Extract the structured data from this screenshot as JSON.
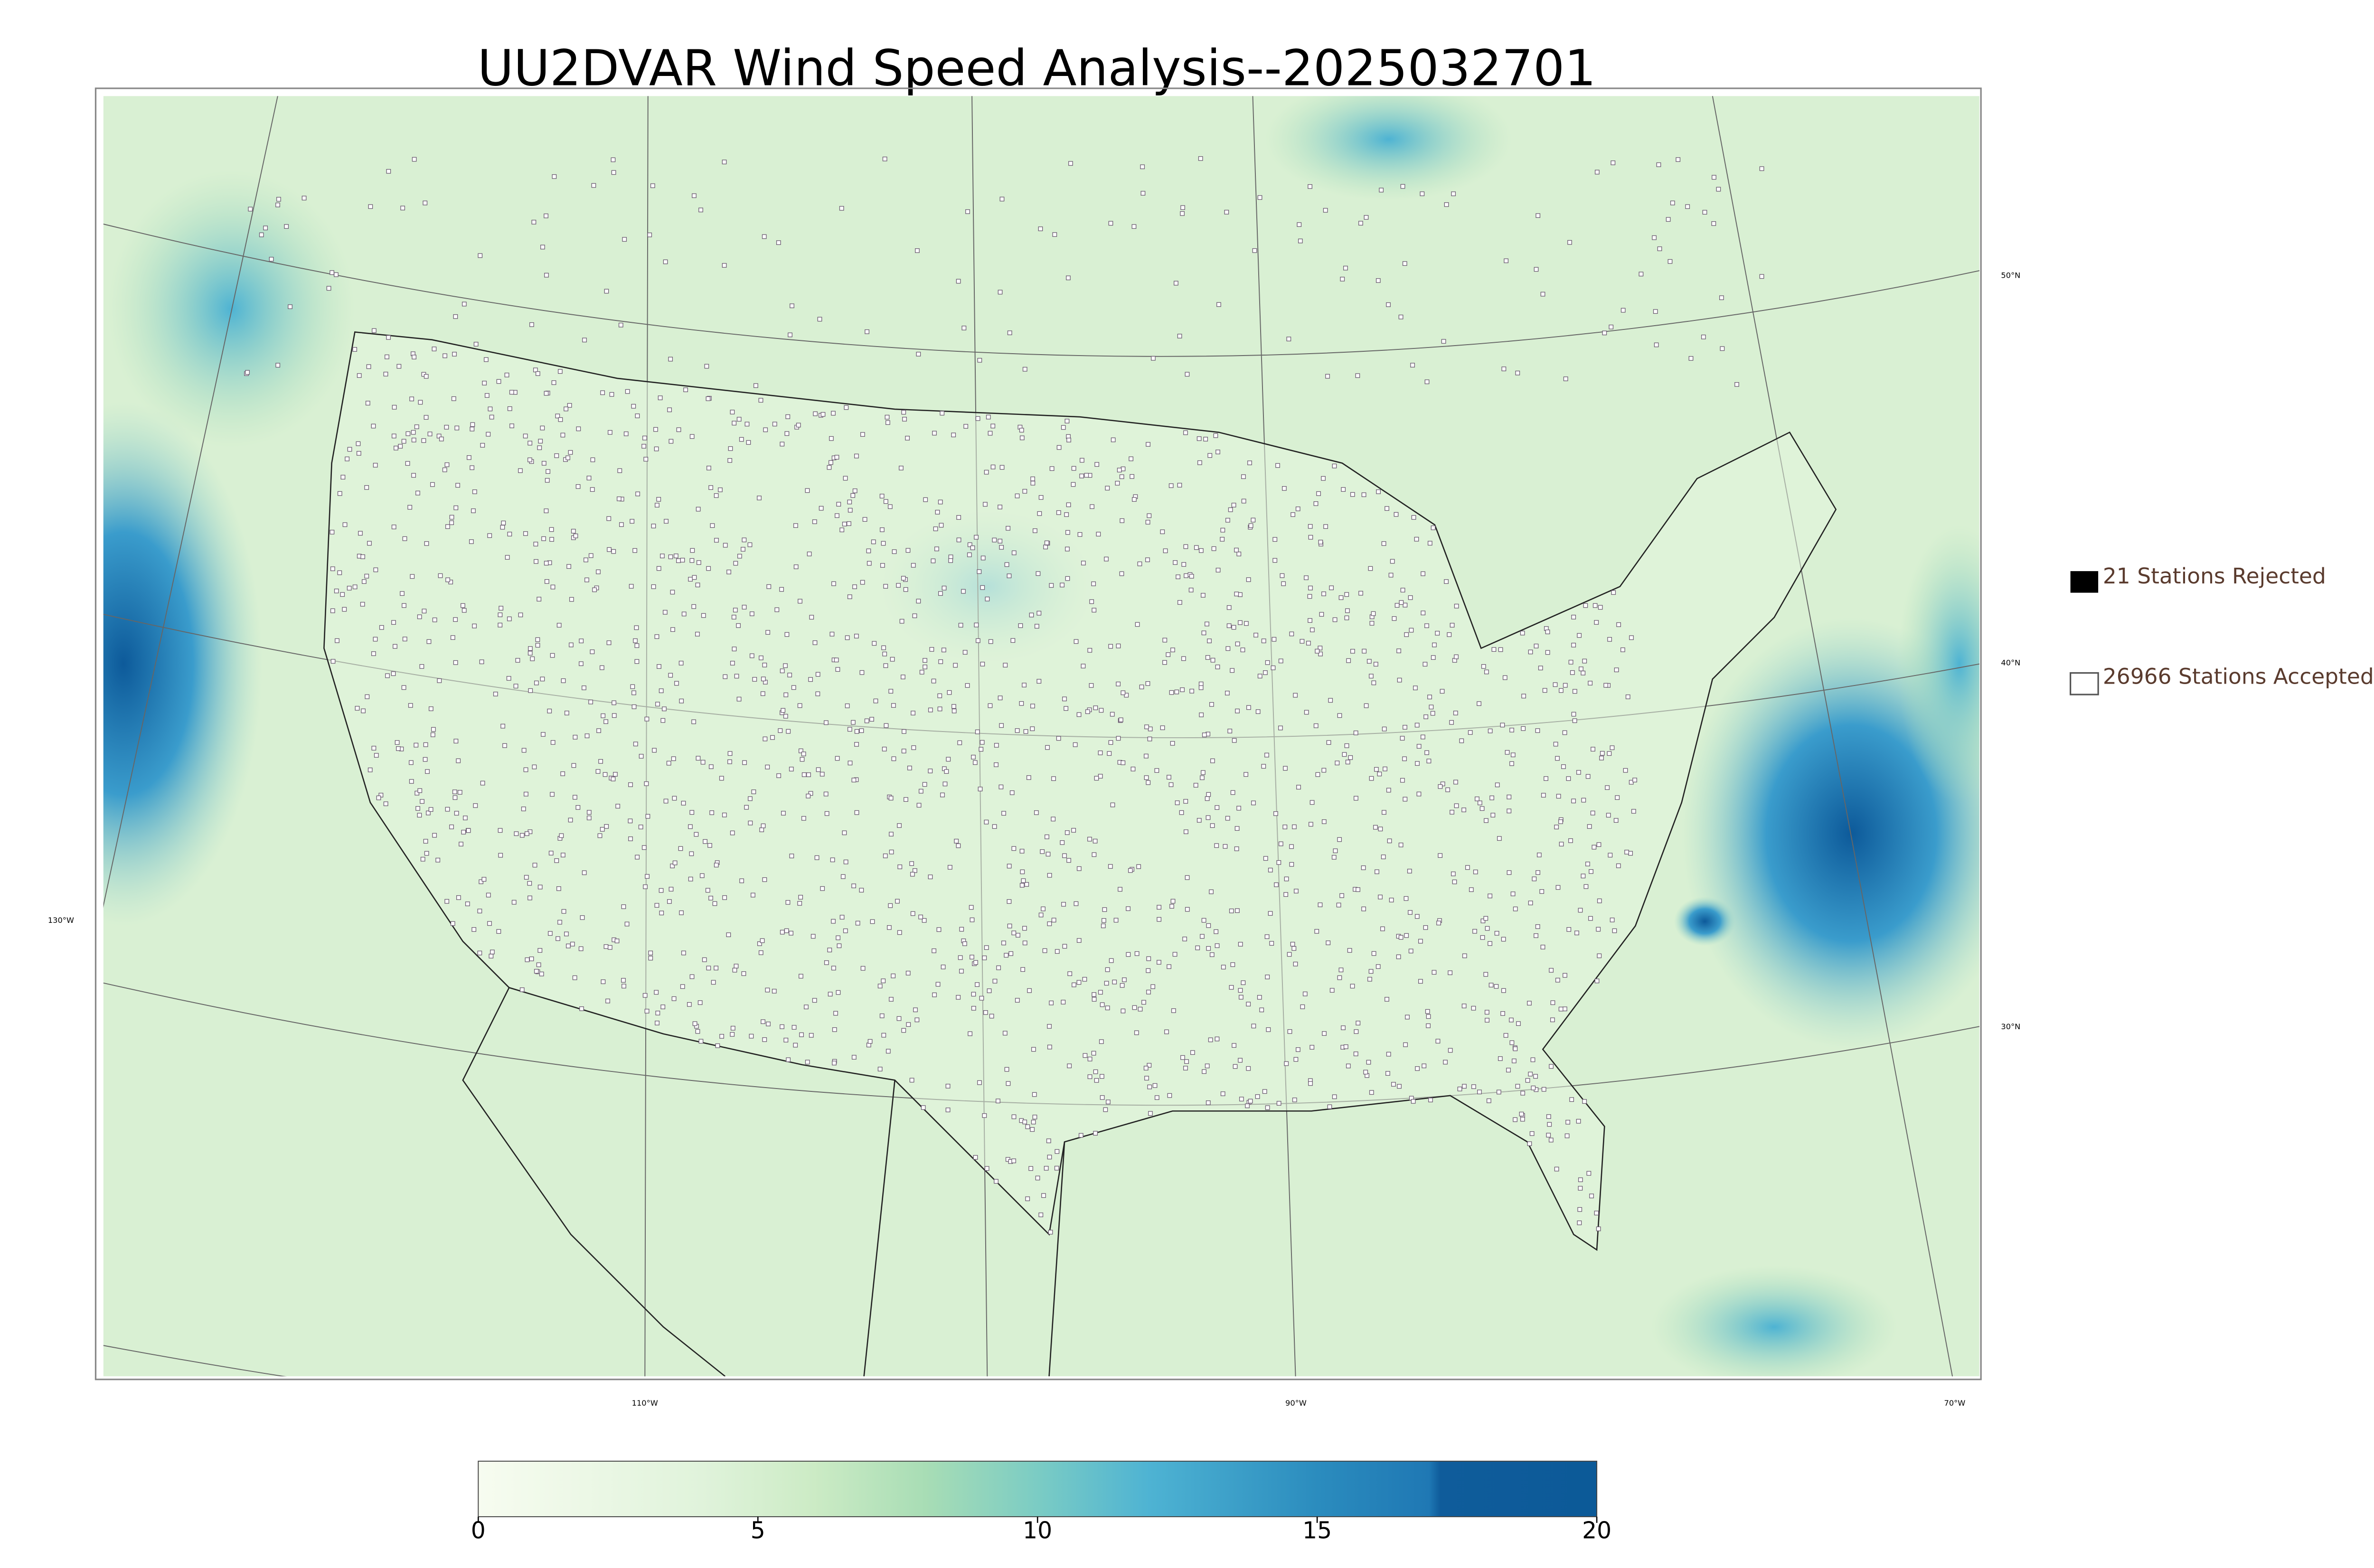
{
  "title": "UU2DVAR Wind Speed Analysis--2025032701",
  "legend": [
    {
      "label": "21 Stations Rejected"
    },
    {
      "label": "26966 Stations Accepted"
    }
  ],
  "graticule": {
    "lat_labels": [
      "50°N",
      "40°N",
      "30°N"
    ],
    "lon_labels": [
      "130°W",
      "110°W",
      "90°W",
      "70°W"
    ]
  },
  "colorbar": {
    "lim": [
      0,
      20
    ],
    "ticks": [
      0,
      5,
      10,
      15,
      20
    ]
  }
}
